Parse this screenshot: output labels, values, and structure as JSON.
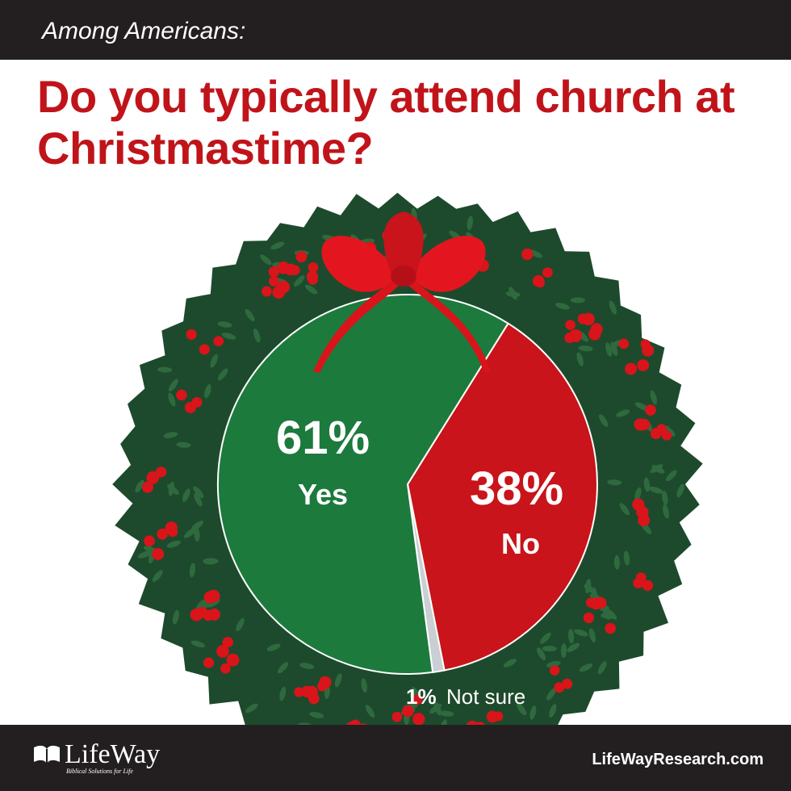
{
  "header": {
    "kicker": "Among Americans:"
  },
  "chart_data": {
    "type": "pie",
    "title": "Do you typically attend church at Christmastime?",
    "slices": [
      {
        "label": "Yes",
        "value": 61,
        "value_label": "61%",
        "color": "#1c7a3d"
      },
      {
        "label": "No",
        "value": 38,
        "value_label": "38%",
        "color": "#c8141a"
      },
      {
        "label": "Not sure",
        "value": 1,
        "value_label": "1%",
        "color": "#c9cfd2"
      }
    ]
  },
  "footer": {
    "logo_text": "LifeWay",
    "logo_tagline": "Biblical Solutions for Life",
    "website": "LifeWayResearch.com"
  },
  "colors": {
    "band": "#231f20",
    "title": "#c0141a",
    "wreath": "#1d4a2c",
    "wreath_leaf": "#2f6a3e",
    "berry": "#d9141b",
    "bow": "#e3161f"
  },
  "icons": [
    "wreath-decoration",
    "ribbon-bow-icon",
    "lifeway-logo-icon"
  ]
}
